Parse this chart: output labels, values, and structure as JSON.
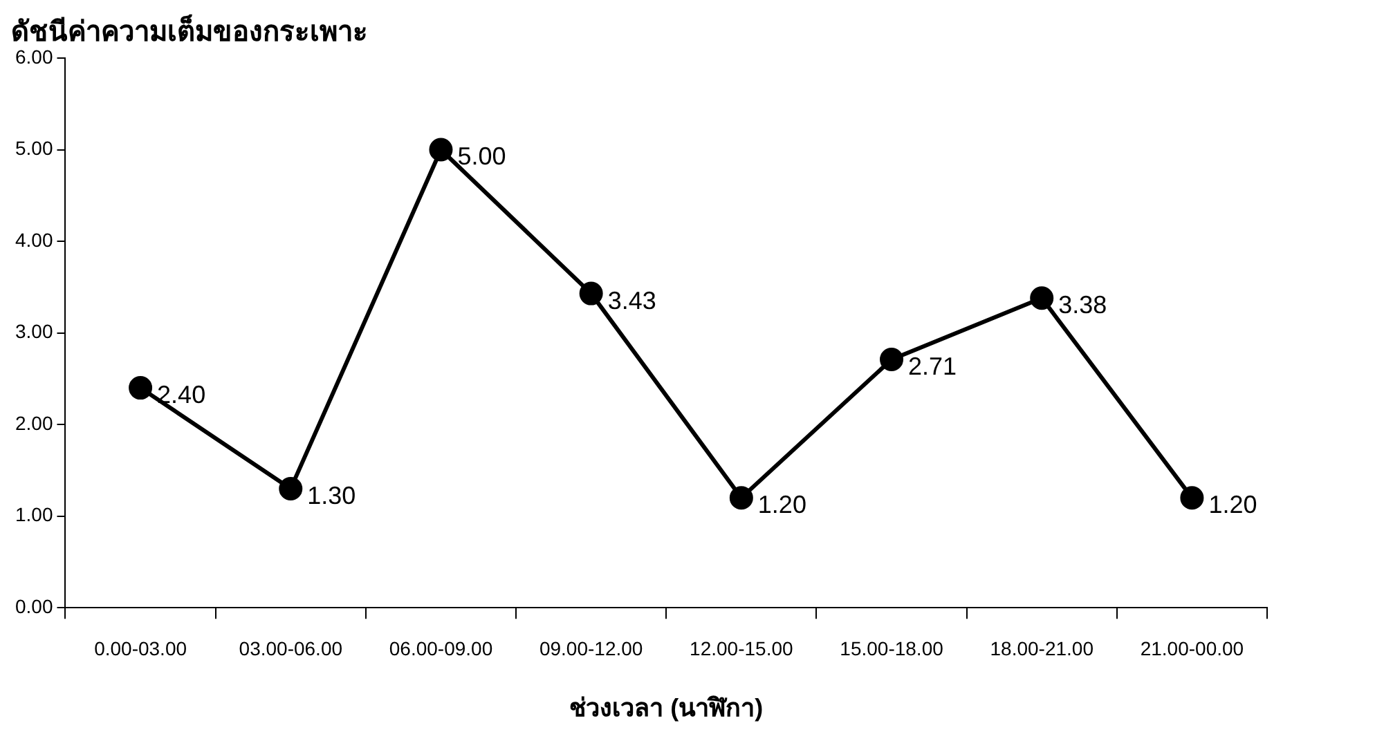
{
  "chart_data": {
    "type": "line",
    "title": "ดัชนีค่าความเต็มของกระเพาะ",
    "xlabel": "ช่วงเวลา (นาฬิกา)",
    "categories": [
      "0.00-03.00",
      "03.00-06.00",
      "06.00-09.00",
      "09.00-12.00",
      "12.00-15.00",
      "15.00-18.00",
      "18.00-21.00",
      "21.00-00.00"
    ],
    "series": [
      {
        "color": "#000000",
        "values": [
          2.4,
          1.3,
          5.0,
          3.43,
          1.2,
          2.71,
          3.38,
          1.2
        ],
        "value_labels": [
          "2.40",
          "1.30",
          "5.00",
          "3.43",
          "1.20",
          "2.71",
          "3.38",
          "1.20"
        ]
      }
    ],
    "ylim": [
      0,
      6
    ],
    "yticks": [
      {
        "value": 0,
        "label": "0.00"
      },
      {
        "value": 1,
        "label": "1.00"
      },
      {
        "value": 2,
        "label": "2.00"
      },
      {
        "value": 3,
        "label": "3.00"
      },
      {
        "value": 4,
        "label": "4.00"
      },
      {
        "value": 5,
        "label": "5.00"
      },
      {
        "value": 6,
        "label": "6.00"
      }
    ],
    "grid": false,
    "legend": false,
    "marker": "circle",
    "line_style": "solid"
  }
}
